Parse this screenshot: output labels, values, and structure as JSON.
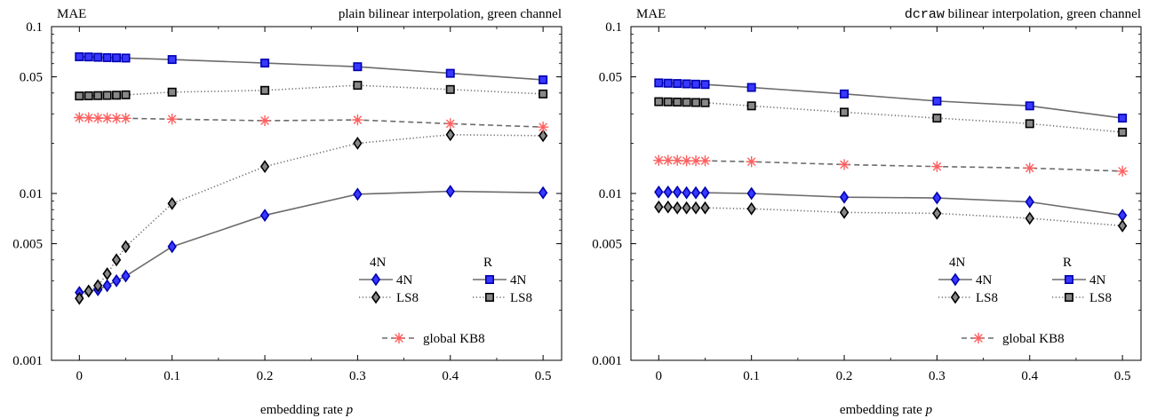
{
  "chart_data": [
    {
      "type": "line",
      "title_parts": [
        {
          "text": "plain bilinear interpolation, green channel",
          "mono": false
        }
      ],
      "ylabel": "MAE",
      "xlabel_text": "embedding rate ",
      "xlabel_var": "p",
      "yscale": "log",
      "ylim": [
        0.001,
        0.1
      ],
      "xlim": [
        -0.03,
        0.52
      ],
      "yticks": [
        0.001,
        0.005,
        0.01,
        0.05,
        0.1
      ],
      "ytick_labels": [
        "0.001",
        "0.005",
        "0.01",
        "0.05",
        "0.1"
      ],
      "xticks": [
        0,
        0.1,
        0.2,
        0.3,
        0.4,
        0.5
      ],
      "xtick_labels": [
        "0",
        "0.1",
        "0.2",
        "0.3",
        "0.4",
        "0.5"
      ],
      "x": [
        0,
        0.01,
        0.02,
        0.03,
        0.04,
        0.05,
        0.1,
        0.2,
        0.3,
        0.4,
        0.5
      ],
      "legend_headers": [
        "4N",
        "R"
      ],
      "series": [
        {
          "name": "4N",
          "group": "4N",
          "marker": "diamond",
          "dash": "solid",
          "color": "#6b6b6b",
          "fill": "#3838ff",
          "stroke": "#0000b0",
          "values": [
            0.00255,
            0.0026,
            0.00265,
            0.0028,
            0.003,
            0.0032,
            0.0048,
            0.0074,
            0.0099,
            0.0103,
            0.0101
          ]
        },
        {
          "name": "LS8",
          "group": "4N",
          "marker": "diamond",
          "dash": "dotted",
          "color": "#6b6b6b",
          "fill": "#888888",
          "stroke": "#000000",
          "values": [
            0.00235,
            0.0026,
            0.0028,
            0.0033,
            0.004,
            0.0048,
            0.0087,
            0.0145,
            0.02,
            0.0225,
            0.0222
          ]
        },
        {
          "name": "4N",
          "group": "R",
          "marker": "square",
          "dash": "solid",
          "color": "#6b6b6b",
          "fill": "#3838ff",
          "stroke": "#0000b0",
          "values": [
            0.066,
            0.0658,
            0.0655,
            0.0652,
            0.065,
            0.0648,
            0.0635,
            0.0605,
            0.0575,
            0.0525,
            0.048
          ]
        },
        {
          "name": "LS8",
          "group": "R",
          "marker": "square",
          "dash": "dotted",
          "color": "#6b6b6b",
          "fill": "#888888",
          "stroke": "#000000",
          "values": [
            0.0384,
            0.0385,
            0.0386,
            0.0387,
            0.0388,
            0.039,
            0.0405,
            0.0415,
            0.0445,
            0.042,
            0.0395
          ]
        },
        {
          "name": "global KB8",
          "group": "global",
          "marker": "star",
          "dash": "dashed",
          "color": "#6b6b6b",
          "fill": "#ff5f5f",
          "stroke": "#ff5f5f",
          "values": [
            0.0285,
            0.0284,
            0.0283,
            0.0283,
            0.0282,
            0.0282,
            0.0279,
            0.0273,
            0.0276,
            0.0262,
            0.025
          ]
        }
      ]
    },
    {
      "type": "line",
      "title_parts": [
        {
          "text": "dcraw",
          "mono": true
        },
        {
          "text": " bilinear interpolation, green channel",
          "mono": false
        }
      ],
      "ylabel": "MAE",
      "xlabel_text": "embedding rate ",
      "xlabel_var": "p",
      "yscale": "log",
      "ylim": [
        0.001,
        0.1
      ],
      "xlim": [
        -0.03,
        0.52
      ],
      "yticks": [
        0.001,
        0.005,
        0.01,
        0.05,
        0.1
      ],
      "ytick_labels": [
        "0.001",
        "0.005",
        "0.01",
        "0.05",
        "0.1"
      ],
      "xticks": [
        0,
        0.1,
        0.2,
        0.3,
        0.4,
        0.5
      ],
      "xtick_labels": [
        "0",
        "0.1",
        "0.2",
        "0.3",
        "0.4",
        "0.5"
      ],
      "x": [
        0,
        0.01,
        0.02,
        0.03,
        0.04,
        0.05,
        0.1,
        0.2,
        0.3,
        0.4,
        0.5
      ],
      "legend_headers": [
        "4N",
        "R"
      ],
      "series": [
        {
          "name": "4N",
          "group": "4N",
          "marker": "diamond",
          "dash": "solid",
          "color": "#6b6b6b",
          "fill": "#3838ff",
          "stroke": "#0000b0",
          "values": [
            0.0102,
            0.0102,
            0.0102,
            0.0101,
            0.0101,
            0.0101,
            0.01,
            0.0095,
            0.0094,
            0.0089,
            0.0074
          ]
        },
        {
          "name": "LS8",
          "group": "4N",
          "marker": "diamond",
          "dash": "dotted",
          "color": "#6b6b6b",
          "fill": "#888888",
          "stroke": "#000000",
          "values": [
            0.0083,
            0.0083,
            0.0082,
            0.0082,
            0.0082,
            0.0082,
            0.0081,
            0.0077,
            0.0076,
            0.0071,
            0.0064
          ]
        },
        {
          "name": "4N",
          "group": "R",
          "marker": "square",
          "dash": "solid",
          "color": "#6b6b6b",
          "fill": "#3838ff",
          "stroke": "#0000b0",
          "values": [
            0.046,
            0.0458,
            0.0456,
            0.0454,
            0.0452,
            0.045,
            0.0432,
            0.0395,
            0.0358,
            0.0335,
            0.0283
          ]
        },
        {
          "name": "LS8",
          "group": "R",
          "marker": "square",
          "dash": "dotted",
          "color": "#6b6b6b",
          "fill": "#888888",
          "stroke": "#000000",
          "values": [
            0.0355,
            0.0354,
            0.0353,
            0.0352,
            0.0351,
            0.035,
            0.0335,
            0.0307,
            0.0283,
            0.0262,
            0.0233
          ]
        },
        {
          "name": "global KB8",
          "group": "global",
          "marker": "star",
          "dash": "dashed",
          "color": "#6b6b6b",
          "fill": "#ff5f5f",
          "stroke": "#ff5f5f",
          "values": [
            0.0158,
            0.0158,
            0.0158,
            0.0157,
            0.0157,
            0.0157,
            0.0155,
            0.0149,
            0.0145,
            0.0142,
            0.0136
          ]
        }
      ]
    }
  ]
}
